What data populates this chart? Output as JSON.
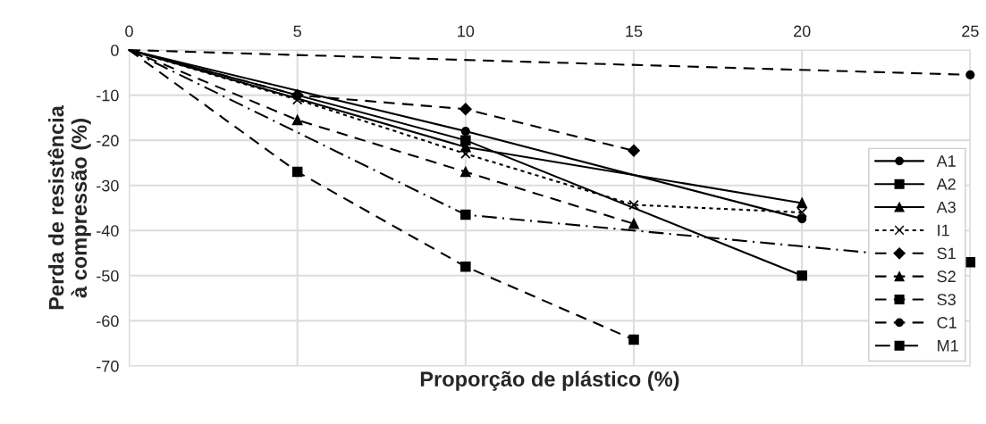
{
  "chart_data": {
    "type": "line",
    "xlabel": "Proporção de plástico (%)",
    "ylabel": "Perda de resistência\nà compressão (%)",
    "xlim": [
      0,
      25
    ],
    "xticks": [
      0,
      5,
      10,
      15,
      20,
      25
    ],
    "ylim": [
      -70,
      0
    ],
    "yticks": [
      -70,
      -60,
      -50,
      -40,
      -30,
      -20,
      -10,
      0
    ],
    "grid": true,
    "legend": "right",
    "series": [
      {
        "name": "A1",
        "color": "#000000",
        "x": [
          0,
          10,
          20
        ],
        "values": [
          0,
          -18,
          -37.4
        ],
        "marker": "circle",
        "line_style": "solid"
      },
      {
        "name": "A2",
        "color": "#000000",
        "x": [
          0,
          10,
          20
        ],
        "values": [
          0,
          -20,
          -50
        ],
        "marker": "square",
        "line_style": "solid"
      },
      {
        "name": "A3",
        "color": "#000000",
        "x": [
          0,
          10,
          20
        ],
        "values": [
          0,
          -21.5,
          -33.9
        ],
        "marker": "triangle",
        "line_style": "solid"
      },
      {
        "name": "I1",
        "color": "#000000",
        "x": [
          0,
          5,
          10,
          15,
          20
        ],
        "values": [
          0,
          -11,
          -23,
          -34.3,
          -36
        ],
        "marker": "cross",
        "line_style": "dotted"
      },
      {
        "name": "S1",
        "color": "#000000",
        "x": [
          0,
          5,
          10,
          15
        ],
        "values": [
          0,
          -10,
          -13.1,
          -22.3
        ],
        "marker": "diamond",
        "line_style": "dashed"
      },
      {
        "name": "S2",
        "color": "#000000",
        "x": [
          0,
          5,
          10,
          15
        ],
        "values": [
          0,
          -15.5,
          -27,
          -38.5
        ],
        "marker": "triangle",
        "line_style": "dashed"
      },
      {
        "name": "S3",
        "color": "#000000",
        "x": [
          0,
          5,
          10,
          15
        ],
        "values": [
          0,
          -27,
          -48,
          -64.2
        ],
        "marker": "square",
        "line_style": "dashed"
      },
      {
        "name": "C1",
        "color": "#000000",
        "x": [
          0,
          25
        ],
        "values": [
          0,
          -5.5
        ],
        "marker": "circle",
        "line_style": "dashed"
      },
      {
        "name": "M1",
        "color": "#000000",
        "x": [
          0,
          10,
          25
        ],
        "values": [
          0,
          -36.5,
          -47
        ],
        "marker": "square",
        "line_style": "dashdot"
      }
    ]
  }
}
